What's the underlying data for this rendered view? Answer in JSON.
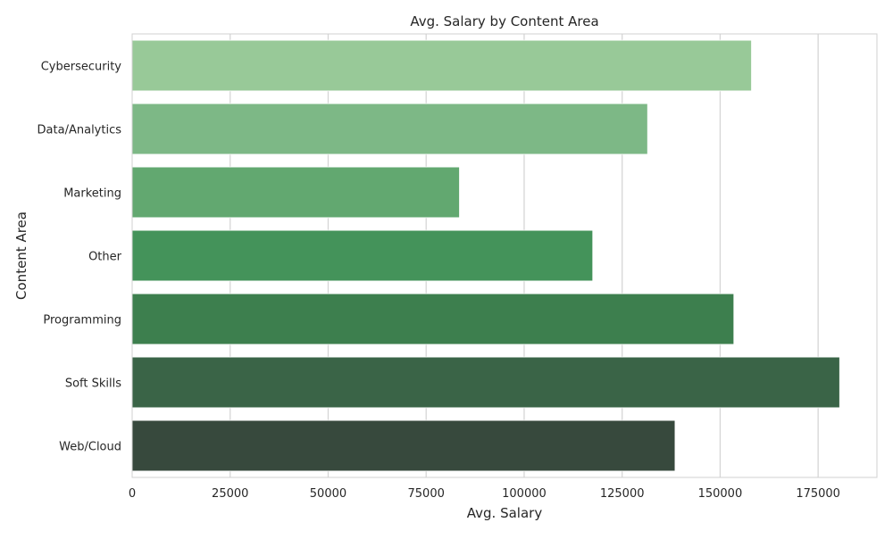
{
  "chart_data": {
    "type": "bar",
    "orientation": "horizontal",
    "title": "Avg. Salary by Content Area",
    "xlabel": "Avg. Salary",
    "ylabel": "Content Area",
    "categories": [
      "Cybersecurity",
      "Data/Analytics",
      "Marketing",
      "Other",
      "Programming",
      "Soft Skills",
      "Web/Cloud"
    ],
    "values": [
      158000,
      131500,
      83500,
      117500,
      153500,
      180500,
      138500
    ],
    "colors": [
      "#98c998",
      "#7db886",
      "#62a870",
      "#44935a",
      "#3d7f4e",
      "#3a6447",
      "#37493d"
    ],
    "xlim": [
      0,
      190000
    ],
    "xticks": [
      0,
      25000,
      50000,
      75000,
      100000,
      125000,
      150000,
      175000
    ],
    "xtick_labels": [
      "0",
      "25000",
      "50000",
      "75000",
      "100000",
      "125000",
      "150000",
      "175000"
    ],
    "grid": "vertical",
    "legend": false
  }
}
